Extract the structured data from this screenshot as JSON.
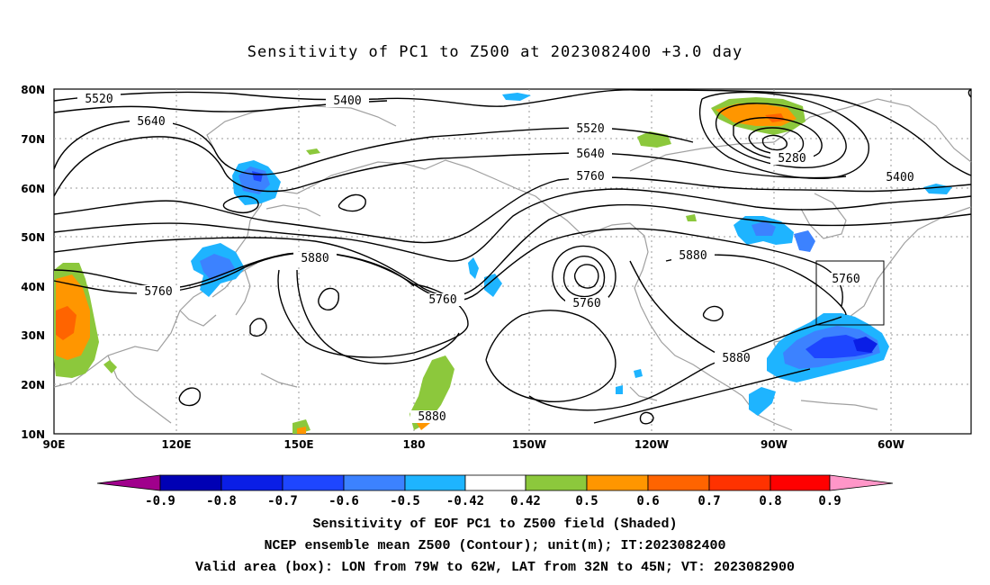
{
  "title": "Sensitivity of PC1 to Z500 at 2023082400 +3.0 day",
  "axes": {
    "lat_labels": [
      "80N",
      "70N",
      "60N",
      "50N",
      "40N",
      "30N",
      "20N",
      "10N"
    ],
    "lon_labels": [
      "90E",
      "120E",
      "150E",
      "180",
      "150W",
      "120W",
      "90W",
      "60W"
    ]
  },
  "contour_labels": [
    "5520",
    "5400",
    "5640",
    "5520",
    "5640",
    "5760",
    "5280",
    "5400",
    "5760",
    "5880",
    "5760",
    "5880",
    "5760",
    "5760",
    "5880",
    "5880"
  ],
  "colorbar": {
    "labels": [
      "-0.9",
      "-0.8",
      "-0.7",
      "-0.6",
      "-0.5",
      "-0.42",
      "0.42",
      "0.5",
      "0.6",
      "0.7",
      "0.8",
      "0.9"
    ],
    "colors": [
      "#a0008c",
      "#0000b4",
      "#0a1ee6",
      "#1e46ff",
      "#3c82ff",
      "#1eb4ff",
      "#00c8ff",
      "#ffffff",
      "#8cc83c",
      "#ff9600",
      "#ff6400",
      "#ff3200",
      "#ff0000",
      "#ff96c8"
    ]
  },
  "footer": {
    "line1": "Sensitivity of EOF PC1 to Z500 field (Shaded)",
    "line2": "NCEP ensemble mean Z500 (Contour); unit(m); IT:2023082400",
    "line3": "Valid area (box): LON from 79W to 62W, LAT from 32N to 45N; VT: 2023082900"
  }
}
